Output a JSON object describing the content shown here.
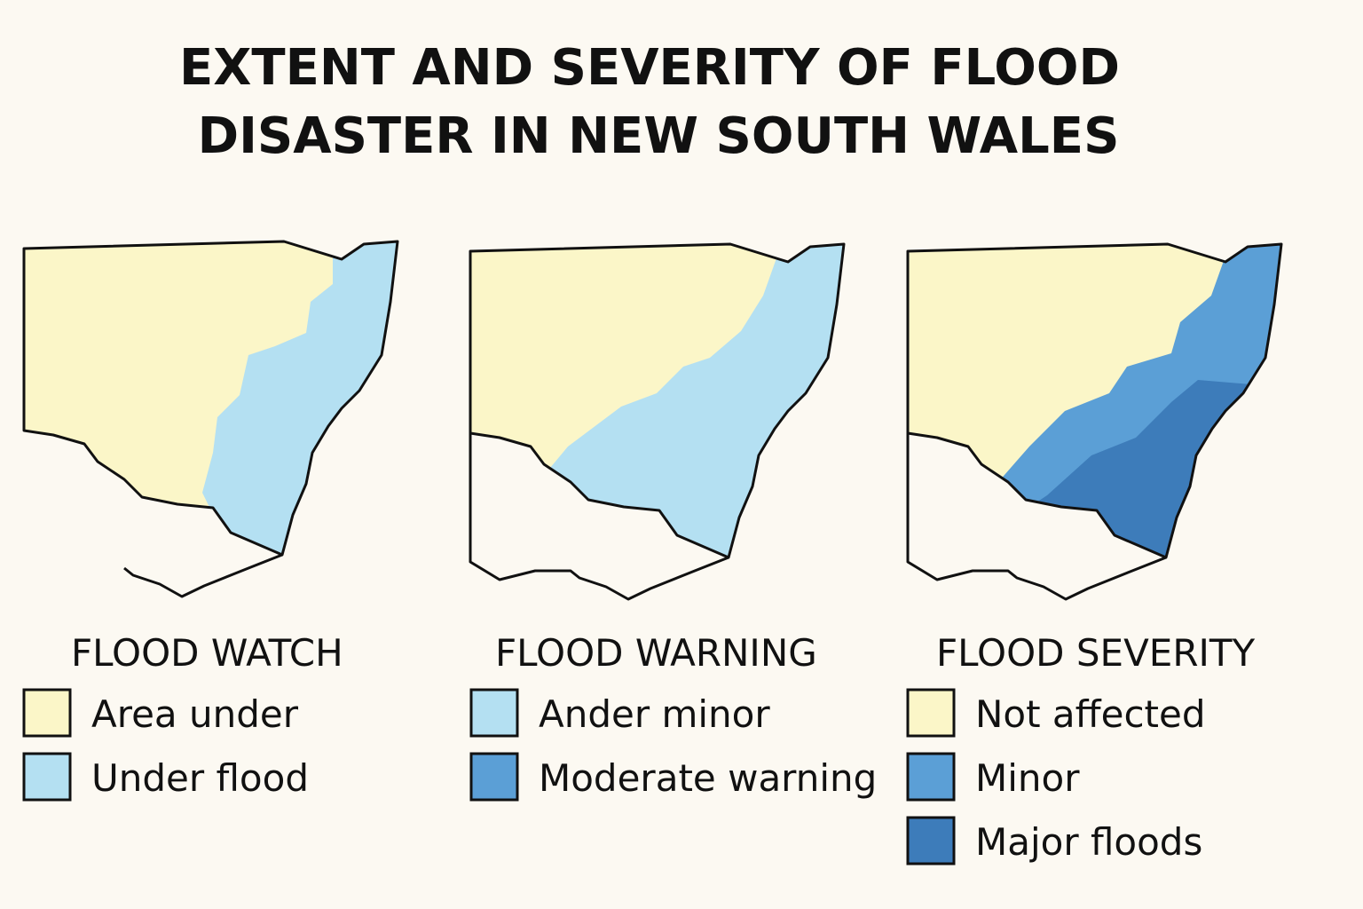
{
  "title_lines": [
    "EXTENT AND SEVERITY OF FLOOD",
    "DISASTER IN NEW SOUTH WALES"
  ],
  "panels": [
    {
      "title": "FLOOD WATCH",
      "legend": [
        {
          "label": "Area under",
          "color": "#fbf6c8"
        },
        {
          "label": "Under flood",
          "color": "#b4e0f2"
        }
      ]
    },
    {
      "title": "FLOOD WARNING",
      "legend": [
        {
          "label": "Ander minor",
          "color": "#b4e0f2"
        },
        {
          "label": "Moderate warning",
          "color": "#5b9fd6"
        }
      ]
    },
    {
      "title": "FLOOD SEVERITY",
      "legend": [
        {
          "label": "Not affected",
          "color": "#fbf6c8"
        },
        {
          "label": "Minor",
          "color": "#5b9fd6"
        },
        {
          "label": "Major floods",
          "color": "#3d7cba"
        }
      ]
    }
  ]
}
